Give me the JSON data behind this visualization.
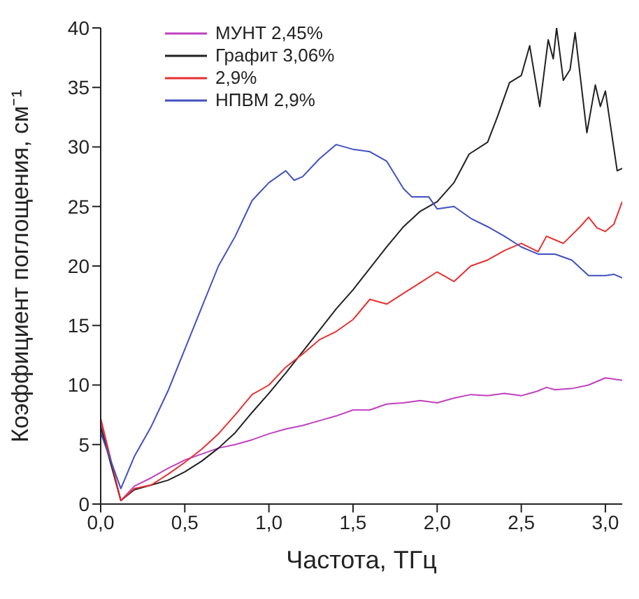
{
  "chart_data": {
    "type": "line",
    "xlabel": "Частота, ТГц",
    "ylabel": "Коэффициент поглощения, см⁻¹",
    "xlim": [
      0,
      3.1
    ],
    "xticks": [
      {
        "value": 0,
        "label": "0,0"
      },
      {
        "value": 0.5,
        "label": "0,5"
      },
      {
        "value": 1,
        "label": "1,0"
      },
      {
        "value": 1.5,
        "label": "1,5"
      },
      {
        "value": 2,
        "label": "2,0"
      },
      {
        "value": 2.5,
        "label": "2,5"
      },
      {
        "value": 3,
        "label": "3,0"
      }
    ],
    "ylim": [
      0,
      40
    ],
    "yticks": [
      0,
      5,
      10,
      15,
      20,
      25,
      30,
      35,
      40
    ],
    "grid": false,
    "legend": "top left",
    "series": [
      {
        "name": "МУНТ 2,45%",
        "color": "#c040c0",
        "x": [
          0,
          0.05,
          0.12,
          0.2,
          0.3,
          0.4,
          0.5,
          0.6,
          0.7,
          0.8,
          0.9,
          1.0,
          1.1,
          1.2,
          1.3,
          1.4,
          1.5,
          1.6,
          1.7,
          1.8,
          1.9,
          2.0,
          2.1,
          2.2,
          2.3,
          2.4,
          2.5,
          2.6,
          2.65,
          2.7,
          2.8,
          2.9,
          3.0,
          3.1
        ],
        "values": [
          7,
          4,
          0.3,
          1.5,
          2.2,
          3,
          3.7,
          4.2,
          4.7,
          5,
          5.4,
          5.9,
          6.3,
          6.6,
          7,
          7.4,
          7.9,
          7.9,
          8.4,
          8.5,
          8.7,
          8.5,
          8.9,
          9.2,
          9.1,
          9.3,
          9.1,
          9.5,
          9.8,
          9.6,
          9.7,
          10,
          10.6,
          10.4
        ]
      },
      {
        "name": "Графит 3,06%",
        "color": "#202020",
        "x": [
          0,
          0.12,
          0.2,
          0.3,
          0.4,
          0.5,
          0.6,
          0.7,
          0.8,
          0.9,
          1.0,
          1.1,
          1.2,
          1.3,
          1.4,
          1.5,
          1.6,
          1.7,
          1.8,
          1.9,
          2.0,
          2.1,
          2.19,
          2.3,
          2.36,
          2.43,
          2.5,
          2.55,
          2.61,
          2.66,
          2.69,
          2.71,
          2.75,
          2.79,
          2.82,
          2.89,
          2.94,
          2.97,
          3.0,
          3.07,
          3.1
        ],
        "values": [
          6.5,
          0.3,
          1.2,
          1.6,
          2,
          2.7,
          3.6,
          4.7,
          6,
          7.7,
          9.3,
          11,
          12.8,
          14.6,
          16.4,
          18,
          19.8,
          21.6,
          23.3,
          24.6,
          25.4,
          27,
          29.4,
          30.4,
          32.6,
          35.4,
          36,
          38.5,
          33.4,
          39,
          37.4,
          40,
          35.6,
          36.5,
          39.6,
          31.2,
          35.2,
          33.4,
          34.7,
          28,
          28.2
        ]
      },
      {
        "name": "2,9%",
        "color": "#e83030",
        "x": [
          0,
          0.12,
          0.2,
          0.3,
          0.4,
          0.5,
          0.6,
          0.7,
          0.8,
          0.9,
          1.0,
          1.1,
          1.2,
          1.3,
          1.4,
          1.5,
          1.6,
          1.7,
          1.8,
          1.9,
          2.0,
          2.1,
          2.2,
          2.3,
          2.4,
          2.5,
          2.6,
          2.65,
          2.7,
          2.75,
          2.85,
          2.9,
          2.95,
          3.0,
          3.05,
          3.1
        ],
        "values": [
          7.2,
          0.3,
          1.3,
          1.6,
          2.5,
          3.5,
          4.6,
          5.9,
          7.5,
          9.2,
          10,
          11.5,
          12.6,
          13.8,
          14.5,
          15.5,
          17.2,
          16.8,
          17.7,
          18.6,
          19.5,
          18.7,
          20,
          20.5,
          21.3,
          21.9,
          21.2,
          22.5,
          22.2,
          21.9,
          23.3,
          24.1,
          23.2,
          22.9,
          23.5,
          25.4
        ]
      },
      {
        "name": "НПВМ 2,9%",
        "color": "#4050c0",
        "x": [
          0,
          0.12,
          0.2,
          0.3,
          0.4,
          0.5,
          0.6,
          0.7,
          0.8,
          0.9,
          1.0,
          1.1,
          1.15,
          1.2,
          1.3,
          1.4,
          1.5,
          1.6,
          1.7,
          1.8,
          1.85,
          1.95,
          2.0,
          2.1,
          2.2,
          2.3,
          2.4,
          2.5,
          2.6,
          2.7,
          2.8,
          2.9,
          3.0,
          3.05,
          3.1
        ],
        "values": [
          6,
          1.3,
          4,
          6.5,
          9.5,
          13,
          16.5,
          20,
          22.5,
          25.5,
          27,
          28,
          27.2,
          27.5,
          29,
          30.2,
          29.8,
          29.6,
          28.8,
          26.5,
          25.8,
          25.8,
          24.8,
          25,
          24,
          23.3,
          22.5,
          21.6,
          21,
          21,
          20.5,
          19.2,
          19.2,
          19.3,
          19
        ]
      }
    ]
  }
}
